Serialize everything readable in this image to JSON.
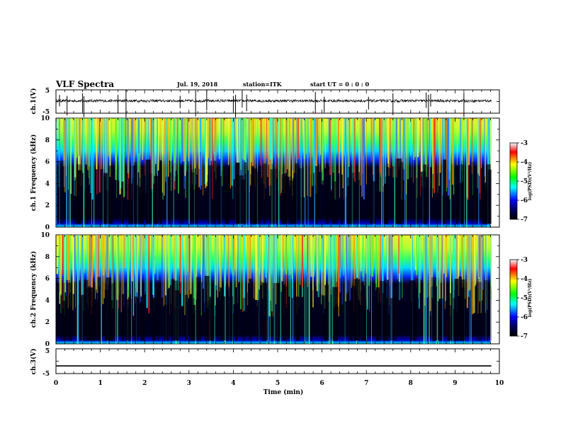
{
  "header": {
    "title": "VLF Spectra",
    "date": "Jul. 19, 2018",
    "station": "station=ITK",
    "start": "start UT =  0 : 0 : 0"
  },
  "colors": {
    "trace": "#000000",
    "background": "#ffffff",
    "colormap": [
      "#000000",
      "#000040",
      "#0000ff",
      "#00ffff",
      "#00ff00",
      "#ffff00",
      "#ff0000",
      "#ffffff"
    ]
  },
  "chart_data": [
    {
      "type": "line",
      "name_label": "ch.1(V)",
      "ylabel": "ch.1(V)",
      "ylim": [
        -5,
        5
      ],
      "yticks": [
        "5",
        "-5"
      ],
      "xlim": [
        0,
        10
      ],
      "description_values": {
        "baseline": 0.3,
        "noise_amplitude": 0.6
      },
      "spikes_min": [
        0.08,
        0.25,
        0.6,
        0.63,
        1.4,
        1.58,
        2.8,
        3.15,
        3.4,
        4.0,
        4.05,
        4.2,
        4.3,
        5.85,
        6.05,
        7.05,
        7.6,
        8.35,
        8.4,
        8.45,
        9.2
      ]
    },
    {
      "type": "heatmap",
      "ylabel": "ch.1 Frequency (kHz)",
      "xlim": [
        0,
        10
      ],
      "ylim": [
        0,
        10
      ],
      "xticks": [
        "0",
        "1",
        "2",
        "3",
        "4",
        "5",
        "6",
        "7",
        "8",
        "9",
        "10"
      ],
      "yticks": [
        "0",
        "2",
        "4",
        "6",
        "8",
        "10"
      ],
      "colorbar_label": "log(PSD)(V²/Hz)",
      "colorbar_range": [
        -7,
        -3
      ],
      "colorbar_ticks": [
        "-3",
        "-4",
        "-5",
        "-6",
        "-7"
      ],
      "data_end_min": 9.82
    },
    {
      "type": "heatmap",
      "ylabel": "ch.2 Frequency (kHz)",
      "xlim": [
        0,
        10
      ],
      "ylim": [
        0,
        10
      ],
      "xticks": [
        "0",
        "1",
        "2",
        "3",
        "4",
        "5",
        "6",
        "7",
        "8",
        "9",
        "10"
      ],
      "yticks": [
        "0",
        "2",
        "4",
        "6",
        "8",
        "10"
      ],
      "colorbar_label": "log(PSD)(V²/Hz)",
      "colorbar_range": [
        -7,
        -3
      ],
      "colorbar_ticks": [
        "-3",
        "-4",
        "-5",
        "-6",
        "-7"
      ],
      "data_end_min": 9.82
    },
    {
      "type": "line",
      "ylabel": "ch.3(V)",
      "ylim": [
        -5,
        5
      ],
      "yticks": [
        "5",
        "-5"
      ],
      "xlim": [
        0,
        10
      ],
      "xlabel": "Time (min)",
      "xticks": [
        "0",
        "1",
        "2",
        "3",
        "4",
        "5",
        "6",
        "7",
        "8",
        "9",
        "10"
      ],
      "constant_value": -1.9,
      "data_end_min": 9.82
    }
  ]
}
